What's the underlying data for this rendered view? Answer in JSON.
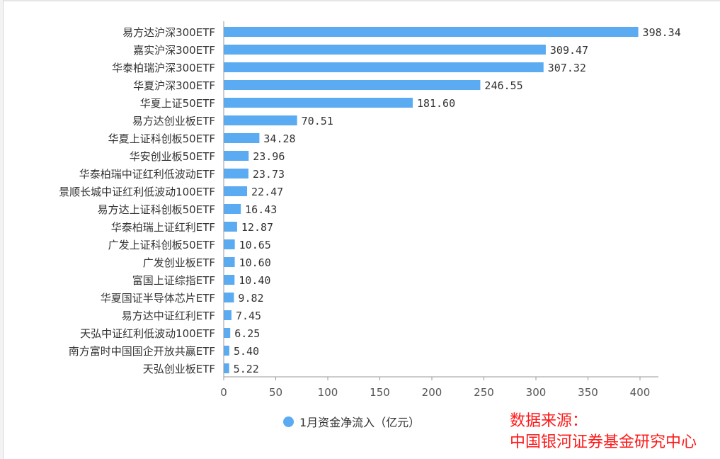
{
  "chart_data": {
    "type": "bar",
    "orientation": "horizontal",
    "categories": [
      "易方达沪深300ETF",
      "嘉实沪深300ETF",
      "华泰柏瑞沪深300ETF",
      "华夏沪深300ETF",
      "华夏上证50ETF",
      "易方达创业板ETF",
      "华夏上证科创板50ETF",
      "华安创业板50ETF",
      "华泰柏瑞中证红利低波动ETF",
      "景顺长城中证红利低波动100ETF",
      "易方达上证科创板50ETF",
      "华泰柏瑞上证红利ETF",
      "广发上证科创板50ETF",
      "广发创业板ETF",
      "富国上证综指ETF",
      "华夏国证半导体芯片ETF",
      "易方达中证红利ETF",
      "天弘中证红利低波动100ETF",
      "南方富时中国国企开放共赢ETF",
      "天弘创业板ETF"
    ],
    "series": [
      {
        "name": "1月资金净流入（亿元）",
        "values": [
          398.34,
          309.47,
          307.32,
          246.55,
          181.6,
          70.51,
          34.28,
          23.96,
          23.73,
          22.47,
          16.43,
          12.87,
          10.65,
          10.6,
          10.4,
          9.82,
          7.45,
          6.25,
          5.4,
          5.22
        ],
        "labels": [
          "398.34",
          "309.47",
          "307.32",
          "246.55",
          "181.60",
          "70.51",
          "34.28",
          "23.96",
          "23.73",
          "22.47",
          "16.43",
          "12.87",
          "10.65",
          "10.60",
          "10.40",
          "9.82",
          "7.45",
          "6.25",
          "5.40",
          "5.22"
        ]
      }
    ],
    "xlim": [
      0,
      420
    ],
    "ticks": [
      "0",
      "50",
      "100",
      "150",
      "200",
      "250",
      "300",
      "350",
      "400"
    ],
    "tick_values": [
      0,
      50,
      100,
      150,
      200,
      250,
      300,
      350,
      400
    ],
    "legend_position": "bottom",
    "grid": false,
    "colors": {
      "bar": "#5aabf1",
      "text": "#333333",
      "axis": "#999999"
    }
  },
  "source": {
    "line1": "数据来源：",
    "line2": "中国银河证券基金研究中心"
  }
}
